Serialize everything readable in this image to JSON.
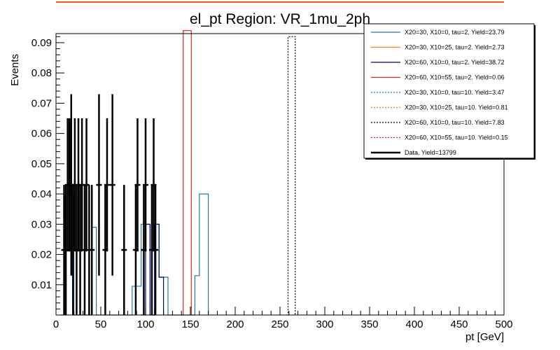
{
  "chart_data": {
    "type": "histogram",
    "title": "el_pt Region: VR_1mu_2ph",
    "xlabel": "pt [GeV]",
    "ylabel": "Events",
    "xlim": [
      0,
      500
    ],
    "ylim": [
      0,
      0.093
    ],
    "x_ticks": [
      0,
      50,
      100,
      150,
      200,
      250,
      300,
      350,
      400,
      450,
      500
    ],
    "x_tick_labels": [
      "0",
      "50",
      "100",
      "150",
      "200",
      "250",
      "300",
      "350",
      "400",
      "450",
      "500"
    ],
    "y_ticks": [
      0.01,
      0.02,
      0.03,
      0.04,
      0.05,
      0.06,
      0.07,
      0.08,
      0.09
    ],
    "y_tick_labels": [
      "0.01",
      "0.02",
      "0.03",
      "0.04",
      "0.05",
      "0.06",
      "0.07",
      "0.08",
      "0.09"
    ],
    "legend_position": "top-right",
    "series": [
      {
        "name": "X20=30, X10=0, tau=2. Yield=23.79",
        "color": "#1f77b4",
        "style": "solid",
        "points": [
          [
            5,
            0
          ],
          [
            10,
            0.04
          ],
          [
            15,
            0.04
          ],
          [
            20,
            0
          ],
          [
            35,
            0
          ],
          [
            40,
            0.029
          ],
          [
            45,
            0
          ],
          [
            80,
            0
          ],
          [
            85,
            0.0095
          ],
          [
            90,
            0.0095
          ],
          [
            95,
            0.03
          ],
          [
            100,
            0.03
          ],
          [
            105,
            0
          ],
          [
            110,
            0.03
          ],
          [
            115,
            0.0125
          ],
          [
            120,
            0.0125
          ],
          [
            125,
            0
          ],
          [
            150,
            0
          ],
          [
            155,
            0.013
          ],
          [
            160,
            0.04
          ],
          [
            165,
            0.04
          ],
          [
            170,
            0
          ]
        ]
      },
      {
        "name": "X20=30, X10=25, tau=2. Yield=2.73",
        "color": "#ff7f0e",
        "style": "solid",
        "points": []
      },
      {
        "name": "X20=60, X10=0, tau=2. Yield=38.72",
        "color": "#000080",
        "style": "solid",
        "points": [
          [
            95,
            0
          ],
          [
            100,
            0.03
          ],
          [
            105,
            0
          ],
          [
            110,
            0.03
          ],
          [
            115,
            0.0125
          ],
          [
            120,
            0
          ]
        ]
      },
      {
        "name": "X20=60, X10=55, tau=2. Yield=0.06",
        "color": "#d62728",
        "style": "solid",
        "points": [
          [
            140,
            0
          ],
          [
            142,
            0.094
          ],
          [
            150,
            0.094
          ],
          [
            151,
            0
          ]
        ]
      },
      {
        "name": "X20=30, X10=0, tau=10. Yield=3.47",
        "color": "#1f77b4",
        "style": "dotted",
        "points": []
      },
      {
        "name": "X20=30, X10=25, tau=10. Yield=0.81",
        "color": "#ff7f0e",
        "style": "dotted",
        "points": []
      },
      {
        "name": "X20=60, X10=0, tau=10. Yield=7.83",
        "color": "#000000",
        "style": "dotted",
        "points": [
          [
            258,
            0
          ],
          [
            259,
            0.092
          ],
          [
            266,
            0.092
          ],
          [
            267,
            0
          ]
        ]
      },
      {
        "name": "X20=60, X10=55, tau=10. Yield=0.15",
        "color": "#d62728",
        "style": "dotted",
        "points": []
      },
      {
        "name": "Data. Yield=13799",
        "color": "#000000",
        "style": "errorbar",
        "points": [
          {
            "x": 9,
            "y": 0.0215,
            "err": 0.0215
          },
          {
            "x": 11,
            "y": 0.0215,
            "err": 0.0215
          },
          {
            "x": 13,
            "y": 0.043,
            "err": 0.022
          },
          {
            "x": 15,
            "y": 0.043,
            "err": 0.022
          },
          {
            "x": 17,
            "y": 0.043,
            "err": 0.03
          },
          {
            "x": 19,
            "y": 0.0215,
            "err": 0.0215
          },
          {
            "x": 21,
            "y": 0.043,
            "err": 0.022
          },
          {
            "x": 23,
            "y": 0.0215,
            "err": 0.0215
          },
          {
            "x": 25,
            "y": 0.043,
            "err": 0.022
          },
          {
            "x": 27,
            "y": 0.0215,
            "err": 0.0215
          },
          {
            "x": 29,
            "y": 0.043,
            "err": 0.022
          },
          {
            "x": 32,
            "y": 0.0215,
            "err": 0.0215
          },
          {
            "x": 34,
            "y": 0.043,
            "err": 0.022
          },
          {
            "x": 37,
            "y": 0.0215,
            "err": 0.0215
          },
          {
            "x": 40,
            "y": 0.0215,
            "err": 0.0215
          },
          {
            "x": 48,
            "y": 0.043,
            "err": 0.03
          },
          {
            "x": 55,
            "y": 0.0215,
            "err": 0.0215
          },
          {
            "x": 57,
            "y": 0.043,
            "err": 0.022
          },
          {
            "x": 63,
            "y": 0.043,
            "err": 0.03
          },
          {
            "x": 76,
            "y": 0.0215,
            "err": 0.0215
          },
          {
            "x": 89,
            "y": 0.0215,
            "err": 0.0215
          },
          {
            "x": 91,
            "y": 0.043,
            "err": 0.022
          },
          {
            "x": 98,
            "y": 0.0215,
            "err": 0.0215
          },
          {
            "x": 100,
            "y": 0.043,
            "err": 0.022
          },
          {
            "x": 107,
            "y": 0.0215,
            "err": 0.0215
          },
          {
            "x": 109,
            "y": 0.043,
            "err": 0.022
          },
          {
            "x": 111,
            "y": 0.0215,
            "err": 0.0215
          }
        ]
      }
    ]
  }
}
